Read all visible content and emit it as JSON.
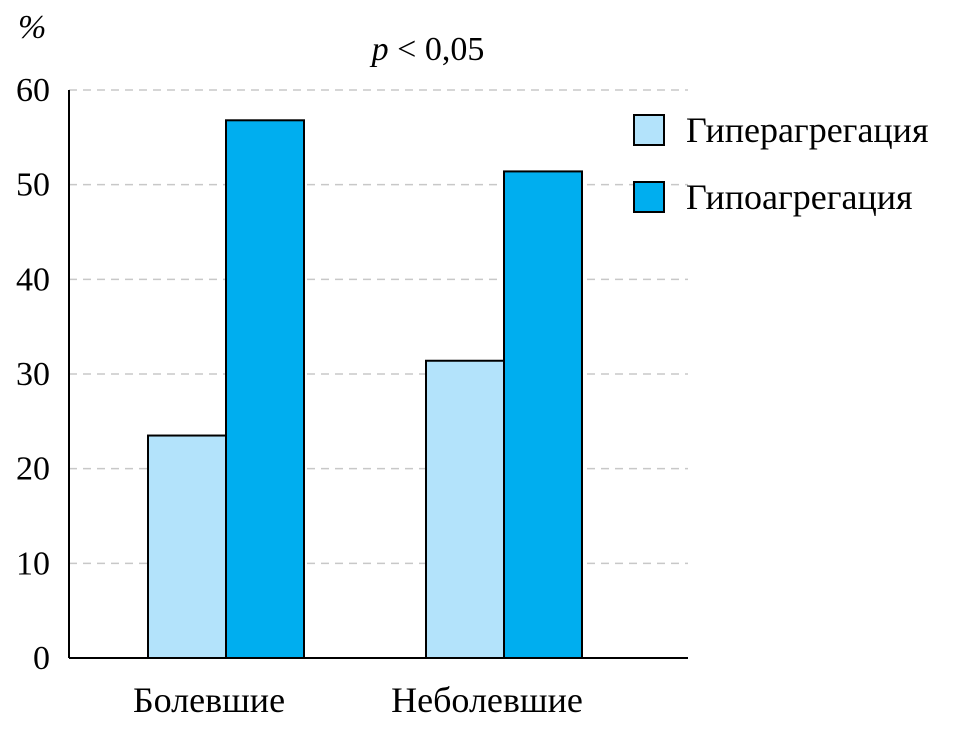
{
  "chart_data": {
    "type": "bar",
    "title": "",
    "annotation": {
      "italic": "p",
      "rest": " < 0,05"
    },
    "ylabel": "%",
    "xlabel": "",
    "ylim": [
      0,
      60
    ],
    "yticks": [
      0,
      10,
      20,
      30,
      40,
      50,
      60
    ],
    "grid": true,
    "legend_position": "top-right",
    "categories": [
      "Болевшие",
      "Неболевшие"
    ],
    "series": [
      {
        "name": "Гиперагрегация",
        "color": "#b3e3fb",
        "values": [
          23.5,
          31.4
        ]
      },
      {
        "name": "Гипоагрегация",
        "color": "#00aeef",
        "values": [
          56.8,
          51.4
        ]
      }
    ]
  }
}
